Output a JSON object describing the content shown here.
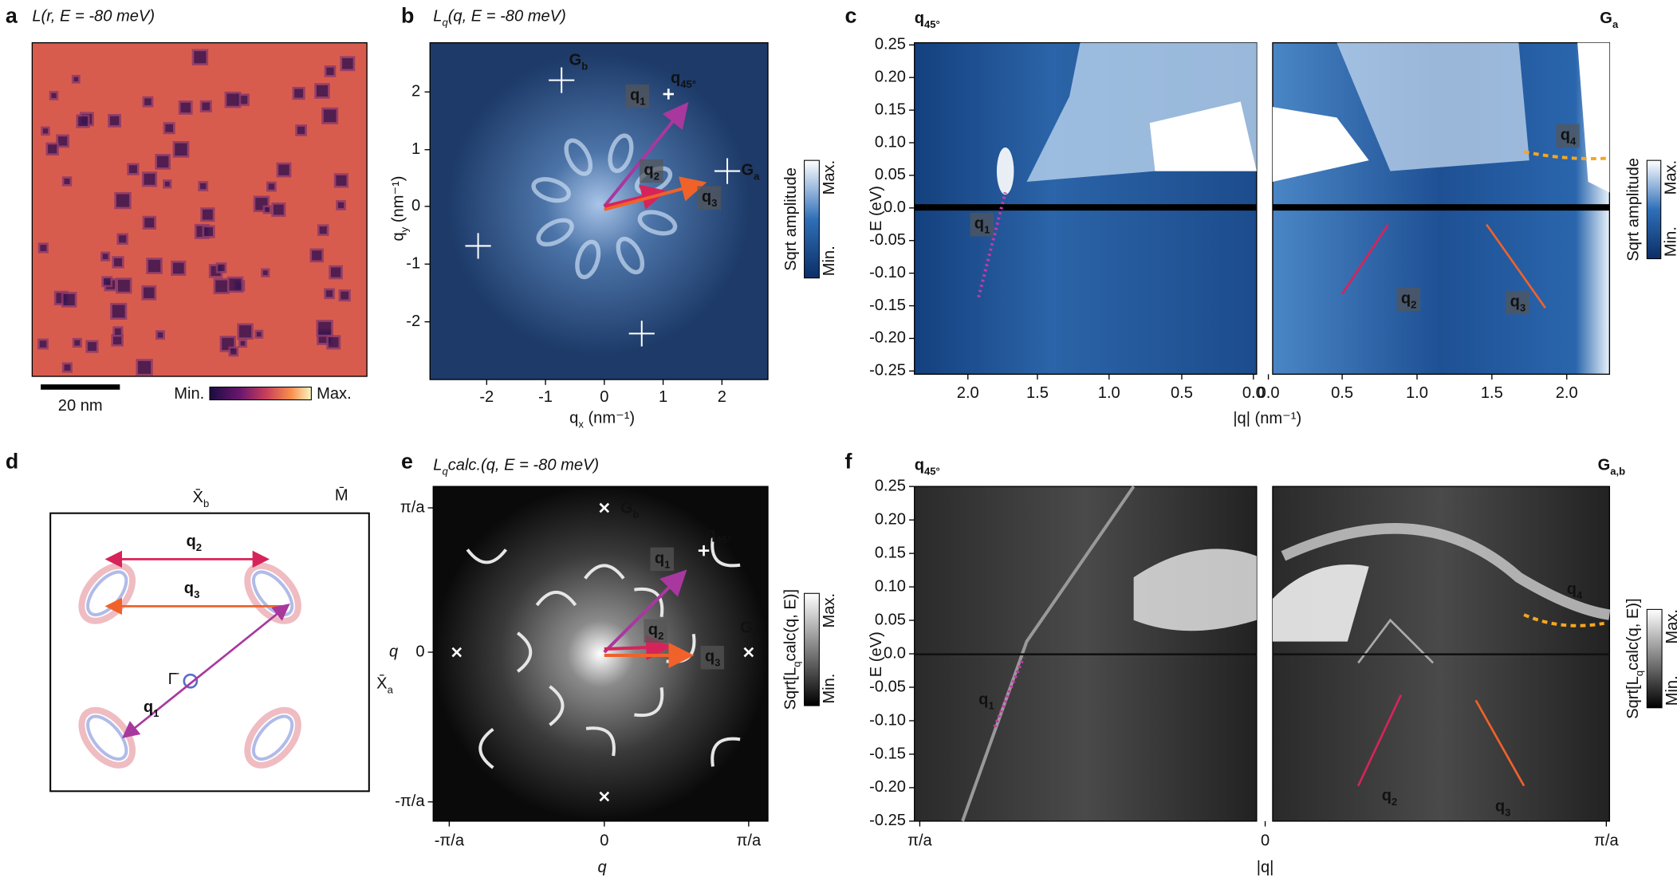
{
  "panel_a": {
    "letter": "a",
    "title": [
      "L(r, E = -80 meV)"
    ],
    "scale_bar": "20 nm",
    "colorbar_min": "Min.",
    "colorbar_max": "Max."
  },
  "panel_b": {
    "letter": "b",
    "title": [
      "L",
      "q",
      "(q, E = -80 meV)"
    ],
    "x_label": [
      "q",
      "x",
      " (nm⁻¹)"
    ],
    "y_label": [
      "q",
      "y",
      " (nm⁻¹)"
    ],
    "xticks": [
      "-2",
      "-1",
      "0",
      "1",
      "2"
    ],
    "yticks": [
      "2",
      "1",
      "0",
      "-1",
      "-2"
    ],
    "g_b": [
      "G",
      "b"
    ],
    "g_a": [
      "G",
      "a"
    ],
    "q45": [
      "q",
      "45°"
    ],
    "q1": [
      "q",
      "1"
    ],
    "q2": [
      "q",
      "2"
    ],
    "q3": [
      "q",
      "3"
    ],
    "colorbar_label": "Sqrt amplitude",
    "colorbar_max": "Max.",
    "colorbar_min": "Min."
  },
  "panel_c": {
    "letter": "c",
    "left_corner": [
      "q",
      "45°"
    ],
    "right_corner": [
      "G",
      "a"
    ],
    "y_label": "E (eV)",
    "yticks": [
      "0.25",
      "0.20",
      "0.15",
      "0.10",
      "0.05",
      "0.0",
      "-0.05",
      "-0.10",
      "-0.15",
      "-0.20",
      "-0.25"
    ],
    "xticks_left": [
      "2.0",
      "1.5",
      "1.0",
      "0.5",
      "0.0"
    ],
    "xticks_right": [
      "0.0",
      "0.5",
      "1.0",
      "1.5",
      "2.0"
    ],
    "x_label": "|q| (nm⁻¹)",
    "q1": [
      "q",
      "1"
    ],
    "q2": [
      "q",
      "2"
    ],
    "q3": [
      "q",
      "3"
    ],
    "q4": [
      "q",
      "4"
    ],
    "colorbar_label": "Sqrt amplitude",
    "colorbar_max": "Max.",
    "colorbar_min": "Min."
  },
  "panel_d": {
    "letter": "d",
    "x_b": [
      "X̄",
      "b"
    ],
    "m": "M̄",
    "gamma": "Γ̄",
    "x_a": [
      "X̄",
      "a"
    ],
    "q1": [
      "q",
      "1"
    ],
    "q2": [
      "q",
      "2"
    ],
    "q3": [
      "q",
      "3"
    ]
  },
  "panel_e": {
    "letter": "e",
    "title": [
      "L",
      "q",
      "calc.(q, E = -80 meV)"
    ],
    "yticks": [
      "π/a",
      "0",
      "-π/a"
    ],
    "xticks": [
      "-π/a",
      "0",
      "π/a"
    ],
    "x_label": "q",
    "y_label": "q",
    "g_b": [
      "G",
      "b"
    ],
    "g_a": [
      "G",
      "a"
    ],
    "q45": [
      "q",
      "45°"
    ],
    "q1": [
      "q",
      "1"
    ],
    "q2": [
      "q",
      "2"
    ],
    "q3": [
      "q",
      "3"
    ],
    "colorbar_label": [
      "Sqrt[L",
      "q",
      "calc(q, E)]"
    ],
    "colorbar_max": "Max.",
    "colorbar_min": "Min."
  },
  "panel_f": {
    "letter": "f",
    "left_corner": [
      "q",
      "45°"
    ],
    "right_corner": [
      "G",
      "a,b"
    ],
    "y_label": "E (eV)",
    "yticks": [
      "0.25",
      "0.20",
      "0.15",
      "0.10",
      "0.05",
      "0.0",
      "-0.05",
      "-0.10",
      "-0.15",
      "-0.20",
      "-0.25"
    ],
    "xticks": [
      "π/a",
      "0",
      "π/a"
    ],
    "x_label": "|q|",
    "q1": [
      "q",
      "1"
    ],
    "q2": [
      "q",
      "2"
    ],
    "q3": [
      "q",
      "3"
    ],
    "q4": [
      "q",
      "4"
    ],
    "colorbar_label": [
      "Sqrt[L",
      "q",
      "calc(q, E)]"
    ],
    "colorbar_max": "Max.",
    "colorbar_min": "Min."
  }
}
